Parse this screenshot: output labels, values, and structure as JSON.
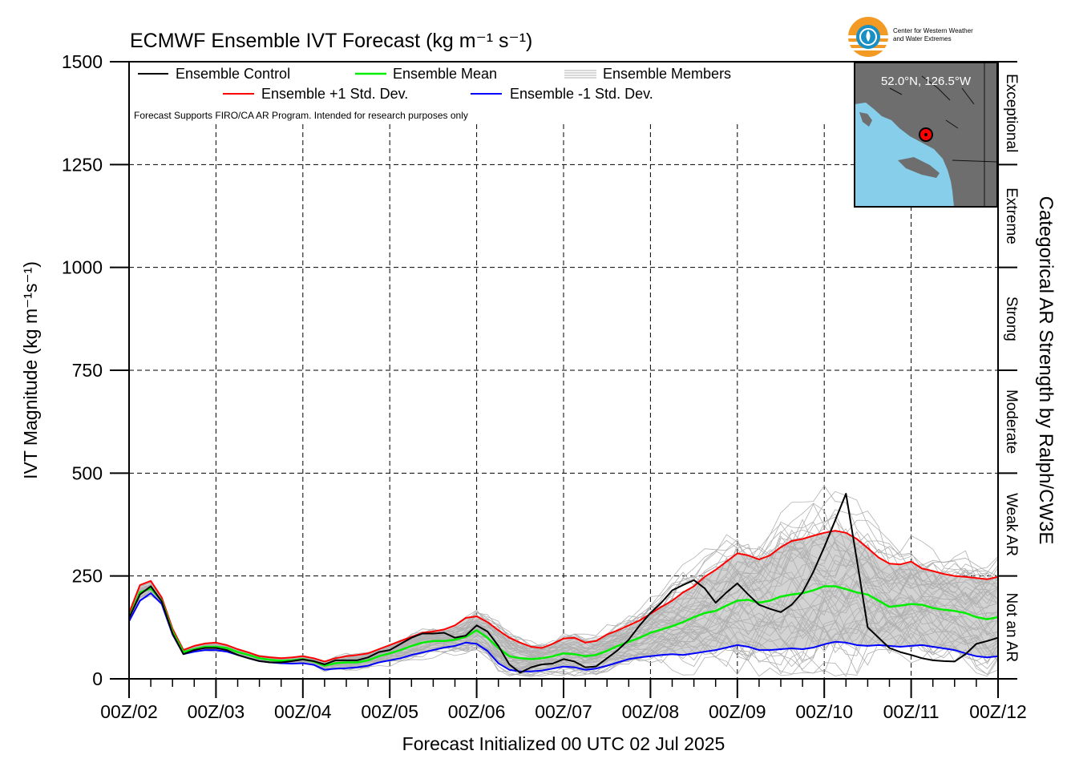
{
  "chart_data": {
    "type": "line",
    "title": "ECMWF Ensemble IVT Forecast (kg m⁻¹ s⁻¹)",
    "xlabel": "Forecast Initialized 00 UTC 02 Jul 2025",
    "ylabel": "IVT Magnitude (kg m⁻¹s⁻¹)",
    "right_label": "Categorical AR Strength by Ralph/CW3E",
    "note": "Forecast Supports FIRO/CA AR Program. Intended for research purposes only",
    "location": "52.0°N, 126.5°W",
    "logo_text": [
      "Center for Western Weather",
      "and Water Extremes"
    ],
    "ylim": [
      0,
      1500
    ],
    "xlim": [
      0,
      240
    ],
    "yticks": [
      0,
      250,
      500,
      750,
      1000,
      1250,
      1500
    ],
    "xtick_values": [
      0,
      24,
      48,
      72,
      96,
      120,
      144,
      168,
      192,
      216,
      240
    ],
    "xticks": [
      "00Z/02",
      "00Z/03",
      "00Z/04",
      "00Z/05",
      "00Z/06",
      "00Z/07",
      "00Z/08",
      "00Z/09",
      "00Z/10",
      "00Z/11",
      "00Z/12"
    ],
    "grid": true,
    "legend_position": "top-left",
    "categories_right": [
      {
        "label": "Not an AR",
        "range": [
          0,
          250
        ]
      },
      {
        "label": "Weak AR",
        "range": [
          250,
          500
        ]
      },
      {
        "label": "Moderate",
        "range": [
          500,
          750
        ]
      },
      {
        "label": "Strong",
        "range": [
          750,
          1000
        ]
      },
      {
        "label": "Extreme",
        "range": [
          1000,
          1250
        ]
      },
      {
        "label": "Exceptional",
        "range": [
          1250,
          1500
        ]
      }
    ],
    "x": [
      0,
      3,
      6,
      9,
      12,
      15,
      18,
      21,
      24,
      27,
      30,
      33,
      36,
      39,
      42,
      45,
      48,
      51,
      54,
      57,
      60,
      63,
      66,
      69,
      72,
      75,
      78,
      81,
      84,
      87,
      90,
      93,
      96,
      99,
      102,
      105,
      108,
      111,
      114,
      117,
      120,
      123,
      126,
      129,
      132,
      135,
      138,
      141,
      144,
      147,
      150,
      153,
      156,
      159,
      162,
      165,
      168,
      171,
      174,
      177,
      180,
      183,
      186,
      189,
      192,
      195,
      198,
      201,
      204,
      207,
      210,
      213,
      216,
      219,
      222,
      225,
      228,
      231,
      234,
      237,
      240
    ],
    "series": [
      {
        "name": "Ensemble Control",
        "color": "#000000",
        "values": [
          148,
          205,
          225,
          188,
          110,
          60,
          70,
          75,
          75,
          70,
          58,
          50,
          43,
          40,
          40,
          43,
          47,
          43,
          35,
          45,
          45,
          45,
          52,
          65,
          70,
          85,
          100,
          110,
          110,
          112,
          100,
          105,
          130,
          115,
          80,
          35,
          15,
          28,
          35,
          37,
          48,
          42,
          28,
          30,
          50,
          70,
          95,
          130,
          160,
          185,
          215,
          228,
          240,
          220,
          185,
          210,
          232,
          205,
          180,
          170,
          162,
          180,
          210,
          260,
          320,
          385,
          450,
          290,
          125,
          100,
          75,
          65,
          58,
          50,
          45,
          43,
          42,
          60,
          85,
          92,
          100
        ]
      },
      {
        "name": "Ensemble Mean",
        "color": "#00ee00",
        "values": [
          150,
          210,
          220,
          190,
          115,
          65,
          72,
          78,
          78,
          75,
          65,
          58,
          50,
          46,
          44,
          45,
          48,
          42,
          32,
          38,
          40,
          40,
          45,
          55,
          62,
          70,
          80,
          88,
          92,
          92,
          95,
          102,
          118,
          100,
          75,
          55,
          50,
          48,
          50,
          55,
          62,
          60,
          55,
          58,
          68,
          80,
          90,
          100,
          112,
          120,
          128,
          138,
          150,
          160,
          165,
          178,
          190,
          192,
          185,
          190,
          200,
          205,
          208,
          215,
          225,
          225,
          218,
          210,
          205,
          190,
          175,
          178,
          182,
          180,
          172,
          168,
          165,
          160,
          150,
          145,
          150
        ]
      },
      {
        "name": "Ensemble +1 Std. Dev.",
        "color": "#ff0000",
        "values": [
          160,
          228,
          238,
          198,
          122,
          70,
          80,
          86,
          88,
          82,
          72,
          64,
          55,
          52,
          50,
          52,
          55,
          50,
          42,
          50,
          55,
          58,
          62,
          72,
          82,
          92,
          102,
          112,
          115,
          120,
          130,
          148,
          152,
          138,
          118,
          100,
          88,
          78,
          75,
          85,
          98,
          100,
          88,
          92,
          108,
          118,
          130,
          142,
          158,
          175,
          190,
          210,
          225,
          248,
          265,
          285,
          305,
          300,
          290,
          300,
          320,
          335,
          340,
          348,
          355,
          360,
          355,
          340,
          318,
          295,
          280,
          278,
          285,
          268,
          262,
          255,
          250,
          248,
          245,
          242,
          248
        ]
      },
      {
        "name": "Ensemble -1 Std. Dev.",
        "color": "#0000ff",
        "values": [
          140,
          190,
          208,
          182,
          108,
          60,
          66,
          70,
          70,
          66,
          58,
          50,
          43,
          40,
          38,
          37,
          38,
          34,
          22,
          25,
          26,
          28,
          32,
          40,
          45,
          50,
          58,
          64,
          70,
          76,
          80,
          88,
          85,
          68,
          38,
          22,
          18,
          18,
          20,
          25,
          30,
          28,
          22,
          25,
          32,
          40,
          48,
          52,
          55,
          58,
          60,
          58,
          62,
          66,
          70,
          76,
          82,
          78,
          70,
          70,
          72,
          74,
          72,
          76,
          84,
          90,
          88,
          82,
          80,
          82,
          80,
          78,
          80,
          82,
          78,
          74,
          70,
          62,
          55,
          52,
          55
        ]
      }
    ],
    "members_label": "Ensemble Members",
    "members_count": 50,
    "members_color": "#b0b0b0",
    "spread_color": "#d3d3d3",
    "marker_color": "#ff0000"
  }
}
